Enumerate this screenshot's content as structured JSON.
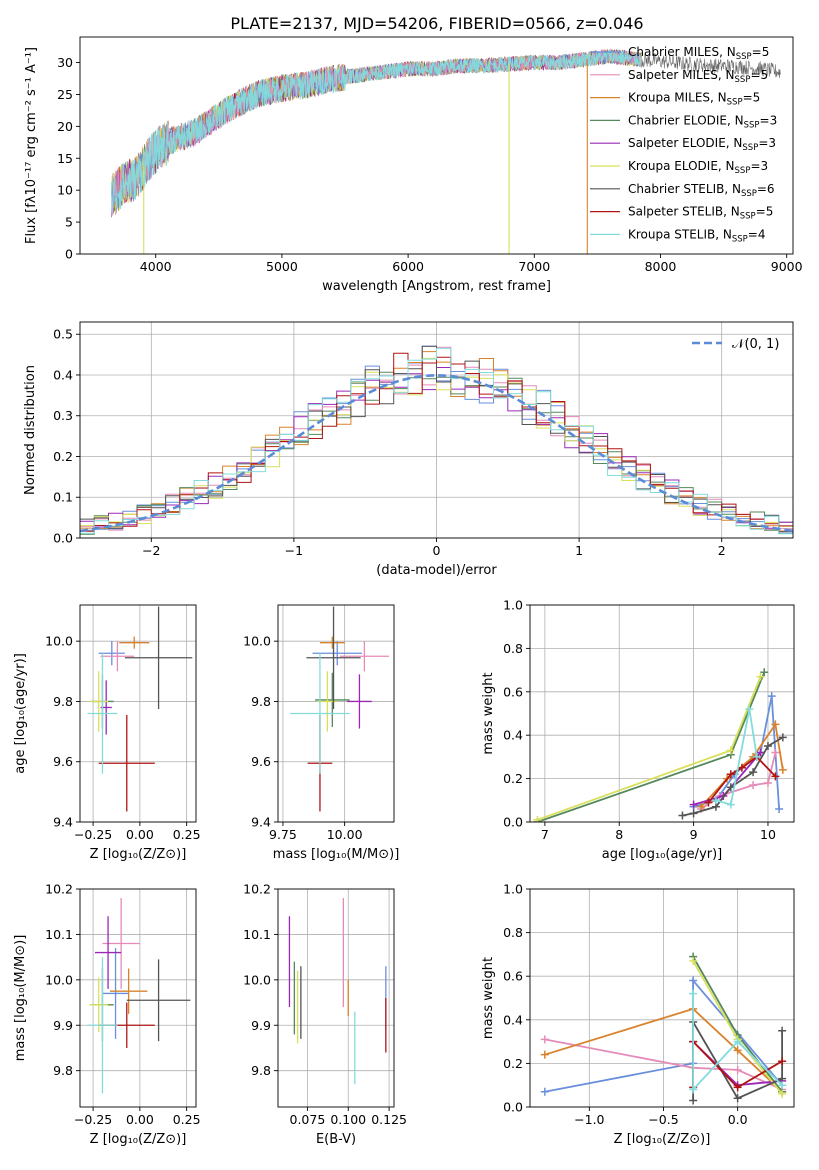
{
  "figure_title": "PLATE=2137, MJD=54206, FIBERID=0566, z=0.046",
  "colors": {
    "chabrier_miles": "#6a8fdc",
    "salpeter_miles": "#e58bb8",
    "kroupa_miles": "#d9822b",
    "chabrier_elodie": "#55885a",
    "salpeter_elodie": "#9a28b7",
    "kroupa_elodie": "#d8e05a",
    "chabrier_stelib": "#545454",
    "salpeter_stelib": "#b11414",
    "kroupa_stelib": "#82dcdc",
    "gauss": "#5b8ad6",
    "grid": "#b0b0b0"
  },
  "chart_data": [
    {
      "id": "spectrum",
      "type": "line",
      "xlabel": "wavelength [Angstrom, rest frame]",
      "ylabel": "Flux [fλ10⁻¹⁷ erg cm⁻² s⁻¹ A⁻¹]",
      "xlim": [
        3400,
        9050
      ],
      "ylim": [
        0,
        34
      ],
      "xticks": [
        4000,
        5000,
        6000,
        7000,
        8000,
        9000
      ],
      "yticks": [
        0,
        5,
        10,
        15,
        20,
        25,
        30
      ],
      "grid": false,
      "legend": "top-right",
      "legend_entries": [
        {
          "prefix": "Chabrier MILES, N",
          "sub": "SSP",
          "suffix": "=5",
          "color_key": "chabrier_miles"
        },
        {
          "prefix": "Salpeter MILES, N",
          "sub": "SSP",
          "suffix": "=5",
          "color_key": "salpeter_miles"
        },
        {
          "prefix": "Kroupa MILES, N",
          "sub": "SSP",
          "suffix": "=5",
          "color_key": "kroupa_miles"
        },
        {
          "prefix": "Chabrier ELODIE, N",
          "sub": "SSP",
          "suffix": "=3",
          "color_key": "chabrier_elodie"
        },
        {
          "prefix": "Salpeter ELODIE, N",
          "sub": "SSP",
          "suffix": "=3",
          "color_key": "salpeter_elodie"
        },
        {
          "prefix": "Kroupa ELODIE, N",
          "sub": "SSP",
          "suffix": "=3",
          "color_key": "kroupa_elodie"
        },
        {
          "prefix": "Chabrier STELIB, N",
          "sub": "SSP",
          "suffix": "=6",
          "color_key": "chabrier_stelib"
        },
        {
          "prefix": "Salpeter STELIB, N",
          "sub": "SSP",
          "suffix": "=5",
          "color_key": "salpeter_stelib"
        },
        {
          "prefix": "Kroupa STELIB, N",
          "sub": "SSP",
          "suffix": "=4",
          "color_key": "kroupa_stelib"
        }
      ],
      "continuum": [
        [
          3650,
          9
        ],
        [
          3750,
          11
        ],
        [
          3850,
          12
        ],
        [
          3950,
          15
        ],
        [
          4050,
          17
        ],
        [
          4150,
          18
        ],
        [
          4300,
          19
        ],
        [
          4450,
          21
        ],
        [
          4600,
          23
        ],
        [
          4800,
          25
        ],
        [
          5000,
          26
        ],
        [
          5200,
          26.5
        ],
        [
          5400,
          27.5
        ],
        [
          5600,
          28
        ],
        [
          5800,
          28.5
        ],
        [
          6000,
          29
        ],
        [
          6200,
          29
        ],
        [
          6400,
          29.5
        ],
        [
          6600,
          29.5
        ],
        [
          6800,
          29.8
        ],
        [
          7000,
          30
        ],
        [
          7200,
          30
        ],
        [
          7400,
          30.5
        ],
        [
          7600,
          31
        ],
        [
          7800,
          30.5
        ],
        [
          8000,
          30.2
        ],
        [
          8200,
          29.8
        ],
        [
          8400,
          29.5
        ],
        [
          8600,
          29.4
        ],
        [
          8800,
          29
        ],
        [
          8950,
          28.5
        ]
      ],
      "model_range": [
        3650,
        7850
      ],
      "observed_range": [
        3650,
        8950
      ],
      "dropouts": [
        {
          "x": 3905,
          "color_key": "kroupa_elodie"
        },
        {
          "x": 6800,
          "color_key": "kroupa_elodie"
        },
        {
          "x": 7420,
          "color_key": "kroupa_miles"
        }
      ]
    },
    {
      "id": "residuals",
      "type": "area",
      "xlabel": "(data-model)/error",
      "ylabel": "Normed distribution",
      "xlim": [
        -2.5,
        2.5
      ],
      "ylim": [
        0,
        0.53
      ],
      "xticks": [
        -2,
        -1,
        0,
        1,
        2
      ],
      "yticks": [
        0.0,
        0.1,
        0.2,
        0.3,
        0.4,
        0.5
      ],
      "grid": true,
      "legend": "top-right",
      "gauss_label": "𝒩(0, 1)",
      "bin_width": 0.1
    },
    {
      "id": "age-vs-z",
      "type": "scatter",
      "xlabel": "Z [log₁₀(Z/Z⊙)]",
      "ylabel": "age  [log₁₀(age/yr)]",
      "xlim": [
        -0.32,
        0.3
      ],
      "ylim": [
        9.4,
        10.12
      ],
      "xticks": [
        -0.25,
        0.0,
        0.25
      ],
      "yticks": [
        9.4,
        9.6,
        9.8,
        10.0
      ],
      "grid": true,
      "points": [
        {
          "x": -0.15,
          "y": 9.96,
          "xerr": 0.07,
          "yerr": 0.04,
          "color_key": "chabrier_miles"
        },
        {
          "x": -0.12,
          "y": 9.95,
          "xerr": 0.09,
          "yerr": 0.05,
          "color_key": "salpeter_miles"
        },
        {
          "x": -0.03,
          "y": 9.995,
          "xerr": 0.08,
          "yerr": 0.02,
          "color_key": "kroupa_miles"
        },
        {
          "x": -0.2,
          "y": 9.8,
          "xerr": 0.06,
          "yerr": 0.09,
          "color_key": "chabrier_elodie"
        },
        {
          "x": -0.18,
          "y": 9.78,
          "xerr": 0.03,
          "yerr": 0.09,
          "color_key": "salpeter_elodie"
        },
        {
          "x": -0.22,
          "y": 9.8,
          "xerr": 0.05,
          "yerr": 0.1,
          "color_key": "kroupa_elodie"
        },
        {
          "x": 0.1,
          "y": 9.945,
          "xerr": 0.18,
          "yerr": 0.17,
          "color_key": "chabrier_stelib"
        },
        {
          "x": -0.07,
          "y": 9.595,
          "xerr": 0.15,
          "yerr": 0.16,
          "color_key": "salpeter_stelib"
        },
        {
          "x": -0.2,
          "y": 9.76,
          "xerr": 0.08,
          "yerr": 0.2,
          "color_key": "kroupa_stelib"
        }
      ]
    },
    {
      "id": "age-vs-mass",
      "type": "scatter",
      "xlabel": "mass [log₁₀(M/M⊙)]",
      "ylabel": "",
      "xlim": [
        9.73,
        10.2
      ],
      "ylim": [
        9.4,
        10.12
      ],
      "xticks": [
        9.75,
        10.0
      ],
      "yticks": [
        9.4,
        9.6,
        9.8,
        10.0
      ],
      "grid": true,
      "points": [
        {
          "x": 9.97,
          "y": 9.96,
          "xerr": 0.1,
          "yerr": 0.04,
          "color_key": "chabrier_miles"
        },
        {
          "x": 10.08,
          "y": 9.95,
          "xerr": 0.1,
          "yerr": 0.05,
          "color_key": "salpeter_miles"
        },
        {
          "x": 9.95,
          "y": 9.995,
          "xerr": 0.05,
          "yerr": 0.02,
          "color_key": "kroupa_miles"
        },
        {
          "x": 9.95,
          "y": 9.805,
          "xerr": 0.07,
          "yerr": 0.09,
          "color_key": "chabrier_elodie"
        },
        {
          "x": 10.06,
          "y": 9.8,
          "xerr": 0.05,
          "yerr": 0.09,
          "color_key": "salpeter_elodie"
        },
        {
          "x": 9.93,
          "y": 9.8,
          "xerr": 0.04,
          "yerr": 0.1,
          "color_key": "kroupa_elodie"
        },
        {
          "x": 9.955,
          "y": 9.945,
          "xerr": 0.11,
          "yerr": 0.17,
          "color_key": "chabrier_stelib"
        },
        {
          "x": 9.9,
          "y": 9.595,
          "xerr": 0.05,
          "yerr": 0.16,
          "color_key": "salpeter_stelib"
        },
        {
          "x": 9.9,
          "y": 9.76,
          "xerr": 0.12,
          "yerr": 0.2,
          "color_key": "kroupa_stelib"
        }
      ]
    },
    {
      "id": "massweight-vs-age",
      "type": "line",
      "xlabel": "age  [log₁₀(age/yr)]",
      "ylabel": "mass weight",
      "xlim": [
        6.8,
        10.35
      ],
      "ylim": [
        0,
        1.0
      ],
      "xticks": [
        7,
        8,
        9,
        10
      ],
      "yticks": [
        0.0,
        0.2,
        0.4,
        0.6,
        0.8,
        1.0
      ],
      "grid": true,
      "series": [
        {
          "color_key": "chabrier_miles",
          "x": [
            9.0,
            9.3,
            9.55,
            9.9,
            10.05,
            10.15
          ],
          "y": [
            0.07,
            0.1,
            0.22,
            0.32,
            0.58,
            0.06
          ]
        },
        {
          "color_key": "salpeter_miles",
          "x": [
            9.1,
            9.35,
            9.8,
            10.0,
            10.1
          ],
          "y": [
            0.06,
            0.12,
            0.17,
            0.18,
            0.32
          ]
        },
        {
          "color_key": "kroupa_miles",
          "x": [
            9.1,
            9.45,
            9.8,
            10.1,
            10.2
          ],
          "y": [
            0.07,
            0.2,
            0.3,
            0.45,
            0.24
          ]
        },
        {
          "color_key": "chabrier_elodie",
          "x": [
            6.9,
            9.5,
            9.95
          ],
          "y": [
            0.0,
            0.31,
            0.69
          ]
        },
        {
          "color_key": "salpeter_elodie",
          "x": [
            9.0,
            9.4,
            9.9
          ],
          "y": [
            0.08,
            0.12,
            0.32
          ]
        },
        {
          "color_key": "kroupa_elodie",
          "x": [
            6.9,
            9.5,
            9.9
          ],
          "y": [
            0.01,
            0.33,
            0.67
          ]
        },
        {
          "color_key": "chabrier_stelib",
          "x": [
            8.85,
            9.0,
            9.3,
            9.5,
            9.8,
            10.0,
            10.2
          ],
          "y": [
            0.03,
            0.04,
            0.07,
            0.16,
            0.23,
            0.35,
            0.39
          ]
        },
        {
          "color_key": "salpeter_stelib",
          "x": [
            9.2,
            9.5,
            9.65,
            9.85,
            10.1
          ],
          "y": [
            0.09,
            0.22,
            0.25,
            0.3,
            0.21
          ]
        },
        {
          "color_key": "kroupa_stelib",
          "x": [
            9.3,
            9.5,
            9.75,
            9.85
          ],
          "y": [
            0.1,
            0.08,
            0.52,
            0.3
          ]
        }
      ]
    },
    {
      "id": "mass-vs-z",
      "type": "scatter",
      "xlabel": "Z [log₁₀(Z/Z⊙)]",
      "ylabel": "mass [log₁₀(M/M⊙)]",
      "xlim": [
        -0.32,
        0.3
      ],
      "ylim": [
        9.72,
        10.2
      ],
      "xticks": [
        -0.25,
        0.0,
        0.25
      ],
      "yticks": [
        9.8,
        9.9,
        10.0,
        10.1,
        10.2
      ],
      "grid": true,
      "points": [
        {
          "x": -0.13,
          "y": 9.97,
          "xerr": 0.07,
          "yerr": 0.1,
          "color_key": "chabrier_miles"
        },
        {
          "x": -0.1,
          "y": 10.08,
          "xerr": 0.1,
          "yerr": 0.1,
          "color_key": "salpeter_miles"
        },
        {
          "x": -0.06,
          "y": 9.975,
          "xerr": 0.1,
          "yerr": 0.05,
          "color_key": "kroupa_miles"
        },
        {
          "x": -0.2,
          "y": 9.945,
          "xerr": 0.06,
          "yerr": 0.08,
          "color_key": "chabrier_elodie"
        },
        {
          "x": -0.17,
          "y": 10.06,
          "xerr": 0.07,
          "yerr": 0.08,
          "color_key": "salpeter_elodie"
        },
        {
          "x": -0.22,
          "y": 9.945,
          "xerr": 0.05,
          "yerr": 0.06,
          "color_key": "kroupa_elodie"
        },
        {
          "x": 0.1,
          "y": 9.955,
          "xerr": 0.17,
          "yerr": 0.09,
          "color_key": "chabrier_stelib"
        },
        {
          "x": -0.07,
          "y": 9.9,
          "xerr": 0.15,
          "yerr": 0.05,
          "color_key": "salpeter_stelib"
        },
        {
          "x": -0.2,
          "y": 9.9,
          "xerr": 0.08,
          "yerr": 0.15,
          "color_key": "kroupa_stelib"
        }
      ]
    },
    {
      "id": "mass-vs-ebv",
      "type": "scatter",
      "xlabel": "E(B-V)",
      "ylabel": "",
      "xlim": [
        0.057,
        0.128
      ],
      "ylim": [
        9.72,
        10.2
      ],
      "xticks": [
        0.075,
        0.1,
        0.125
      ],
      "yticks": [
        9.8,
        9.9,
        10.0,
        10.1,
        10.2
      ],
      "grid": true,
      "points": [
        {
          "x": 0.123,
          "y": 9.96,
          "xerr": 0,
          "yerr": 0.07,
          "color_key": "chabrier_miles"
        },
        {
          "x": 0.097,
          "y": 10.06,
          "xerr": 0,
          "yerr": 0.12,
          "color_key": "salpeter_miles"
        },
        {
          "x": 0.1,
          "y": 9.96,
          "xerr": 0,
          "yerr": 0.04,
          "color_key": "kroupa_miles"
        },
        {
          "x": 0.067,
          "y": 9.96,
          "xerr": 0,
          "yerr": 0.08,
          "color_key": "chabrier_elodie"
        },
        {
          "x": 0.064,
          "y": 10.04,
          "xerr": 0,
          "yerr": 0.1,
          "color_key": "salpeter_elodie"
        },
        {
          "x": 0.069,
          "y": 9.94,
          "xerr": 0,
          "yerr": 0.08,
          "color_key": "kroupa_elodie"
        },
        {
          "x": 0.071,
          "y": 9.95,
          "xerr": 0,
          "yerr": 0.08,
          "color_key": "chabrier_stelib"
        },
        {
          "x": 0.123,
          "y": 9.9,
          "xerr": 0,
          "yerr": 0.06,
          "color_key": "salpeter_stelib"
        },
        {
          "x": 0.104,
          "y": 9.85,
          "xerr": 0,
          "yerr": 0.08,
          "color_key": "kroupa_stelib"
        }
      ]
    },
    {
      "id": "massweight-vs-z",
      "type": "line",
      "xlabel": "Z [log₁₀(Z/Z⊙)]",
      "ylabel": "mass weight",
      "xlim": [
        -1.4,
        0.38
      ],
      "ylim": [
        0,
        1.0
      ],
      "xticks": [
        -1.0,
        -0.5,
        0.0
      ],
      "yticks": [
        0.0,
        0.2,
        0.4,
        0.6,
        0.8,
        1.0
      ],
      "grid": true,
      "series": [
        {
          "color_key": "chabrier_miles",
          "x": [
            -1.3,
            -0.3,
            -0.3,
            0.3
          ],
          "y": [
            0.07,
            0.2,
            0.58,
            0.1
          ]
        },
        {
          "color_key": "salpeter_miles",
          "x": [
            -1.3,
            -0.3,
            0.0,
            0.3
          ],
          "y": [
            0.31,
            0.18,
            0.17,
            0.08
          ]
        },
        {
          "color_key": "kroupa_miles",
          "x": [
            -1.3,
            -0.3,
            0.0,
            0.3
          ],
          "y": [
            0.24,
            0.45,
            0.26,
            0.07
          ]
        },
        {
          "color_key": "chabrier_elodie",
          "x": [
            -0.3,
            0.0,
            0.3
          ],
          "y": [
            0.69,
            0.33,
            0.07
          ]
        },
        {
          "color_key": "salpeter_elodie",
          "x": [
            -0.3,
            0.0,
            0.3
          ],
          "y": [
            0.3,
            0.1,
            0.12
          ]
        },
        {
          "color_key": "kroupa_elodie",
          "x": [
            -0.3,
            0.0,
            0.3
          ],
          "y": [
            0.67,
            0.31,
            0.06
          ]
        },
        {
          "color_key": "chabrier_stelib",
          "x": [
            -0.3,
            -0.3,
            0.0,
            0.3,
            0.3
          ],
          "y": [
            0.03,
            0.39,
            0.04,
            0.13,
            0.35
          ]
        },
        {
          "color_key": "salpeter_stelib",
          "x": [
            -0.3,
            -0.3,
            0.0,
            0.3
          ],
          "y": [
            0.09,
            0.3,
            0.09,
            0.21
          ]
        },
        {
          "color_key": "kroupa_stelib",
          "x": [
            -0.3,
            -0.3,
            0.0,
            0.3
          ],
          "y": [
            0.52,
            0.08,
            0.3,
            0.1
          ]
        }
      ]
    }
  ]
}
